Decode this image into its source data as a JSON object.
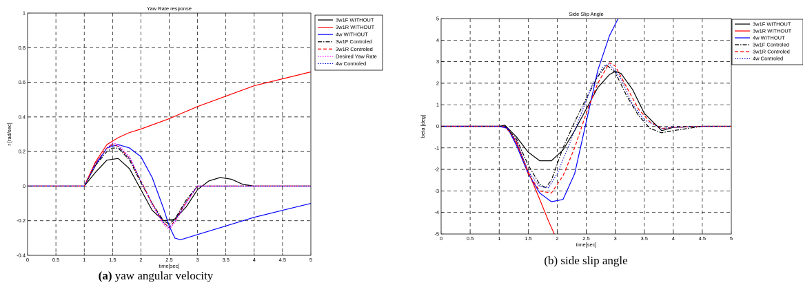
{
  "chart_data": [
    {
      "type": "line",
      "title": "Yaw Rate response",
      "xlabel": "time[sec]",
      "ylabel": "r [rad/sec]",
      "xlim": [
        0,
        5
      ],
      "ylim": [
        -0.4,
        1
      ],
      "xticks": [
        0,
        0.5,
        1,
        1.5,
        2,
        2.5,
        3,
        3.5,
        4,
        4.5,
        5
      ],
      "xtick_labels": [
        "0",
        "0.5",
        "1",
        "1.5",
        "2",
        "2.5",
        "3",
        "3.5",
        "4",
        "4.5",
        "5"
      ],
      "yticks": [
        -0.4,
        -0.2,
        0,
        0.2,
        0.4,
        0.6,
        0.8,
        1
      ],
      "ytick_labels": [
        "-0.4",
        "-0.2",
        "0",
        "0.2",
        "0.4",
        "0.6",
        "0.8",
        "1"
      ],
      "grid": true,
      "legend_position": "top-right",
      "caption_prefix": "(a)",
      "caption_text": " yaw angular velocity",
      "series": [
        {
          "name": "3w1F WITHOUT",
          "color": "#000000",
          "dash": "solid",
          "x": [
            0,
            1,
            1.2,
            1.4,
            1.6,
            1.8,
            2.0,
            2.2,
            2.4,
            2.6,
            2.8,
            3.0,
            3.2,
            3.4,
            3.6,
            3.8,
            4.0,
            4.5,
            5
          ],
          "y": [
            0,
            0,
            0.08,
            0.15,
            0.16,
            0.1,
            -0.02,
            -0.14,
            -0.2,
            -0.19,
            -0.12,
            -0.02,
            0.03,
            0.05,
            0.04,
            0.01,
            0,
            0,
            0
          ]
        },
        {
          "name": "3w1R WITHOUT",
          "color": "#ff0000",
          "dash": "solid",
          "x": [
            0,
            1,
            1.2,
            1.4,
            1.6,
            1.8,
            2.0,
            2.5,
            3.0,
            3.5,
            4.0,
            4.5,
            5
          ],
          "y": [
            0,
            0,
            0.14,
            0.24,
            0.28,
            0.31,
            0.33,
            0.39,
            0.46,
            0.52,
            0.58,
            0.62,
            0.66
          ]
        },
        {
          "name": "4w WITHOUT",
          "color": "#0000ff",
          "dash": "solid",
          "x": [
            0,
            1,
            1.2,
            1.4,
            1.6,
            1.8,
            2.0,
            2.2,
            2.4,
            2.5,
            2.6,
            2.7,
            3.0,
            3.5,
            4.0,
            4.5,
            5
          ],
          "y": [
            0,
            0,
            0.12,
            0.22,
            0.24,
            0.22,
            0.17,
            0.05,
            -0.13,
            -0.23,
            -0.3,
            -0.31,
            -0.28,
            -0.23,
            -0.18,
            -0.14,
            -0.1
          ]
        },
        {
          "name": "3w1F Controled",
          "color": "#000000",
          "dash": "dashdot",
          "x": [
            0,
            1,
            1.2,
            1.4,
            1.5,
            1.6,
            1.8,
            2.0,
            2.2,
            2.4,
            2.5,
            2.6,
            2.8,
            3.0,
            3.5,
            4,
            5
          ],
          "y": [
            0,
            0,
            0.12,
            0.2,
            0.22,
            0.22,
            0.15,
            0.02,
            -0.1,
            -0.2,
            -0.22,
            -0.19,
            -0.08,
            0,
            0,
            0,
            0
          ]
        },
        {
          "name": "3w1R Controled",
          "color": "#ff0000",
          "dash": "dashed",
          "x": [
            0,
            1,
            1.2,
            1.4,
            1.5,
            1.6,
            1.8,
            2.0,
            2.2,
            2.4,
            2.5,
            2.6,
            2.8,
            3.0,
            3.5,
            4,
            5
          ],
          "y": [
            0,
            0,
            0.13,
            0.22,
            0.24,
            0.23,
            0.16,
            0.03,
            -0.1,
            -0.21,
            -0.24,
            -0.2,
            -0.09,
            0,
            0,
            0,
            0
          ]
        },
        {
          "name": "Desired Yaw Rate",
          "color": "#ff00ff",
          "dash": "dotted",
          "x": [
            0,
            1,
            1.2,
            1.4,
            1.5,
            1.6,
            1.8,
            2.0,
            2.2,
            2.4,
            2.5,
            2.6,
            2.8,
            3.0,
            3.5,
            4,
            5
          ],
          "y": [
            0,
            0,
            0.13,
            0.22,
            0.25,
            0.24,
            0.17,
            0.03,
            -0.11,
            -0.22,
            -0.25,
            -0.21,
            -0.1,
            0,
            0,
            0,
            0
          ]
        },
        {
          "name": "4w Controled",
          "color": "#0000cc",
          "dash": "dotted",
          "x": [
            0,
            1,
            1.2,
            1.4,
            1.5,
            1.6,
            1.8,
            2.0,
            2.2,
            2.4,
            2.5,
            2.6,
            2.8,
            3.0,
            3.5,
            4,
            5
          ],
          "y": [
            0,
            0,
            0.13,
            0.22,
            0.24,
            0.23,
            0.16,
            0.03,
            -0.1,
            -0.21,
            -0.24,
            -0.2,
            -0.09,
            0,
            0,
            0,
            0
          ]
        }
      ]
    },
    {
      "type": "line",
      "title": "Side Slip Angle",
      "xlabel": "time[sec]",
      "ylabel": "beta [deg]",
      "xlim": [
        0,
        5
      ],
      "ylim": [
        -5,
        5
      ],
      "xticks": [
        0,
        0.5,
        1,
        1.5,
        2,
        2.5,
        3,
        3.5,
        4,
        4.5,
        5
      ],
      "xtick_labels": [
        "0",
        "0.5",
        "1",
        "1.5",
        "2",
        "2.5",
        "3",
        "3.5",
        "4",
        "4.5",
        "5"
      ],
      "yticks": [
        -5,
        -4,
        -3,
        -2,
        -1,
        0,
        1,
        2,
        3,
        4,
        5
      ],
      "ytick_labels": [
        "-5",
        "-4",
        "-3",
        "-2",
        "-1",
        "0",
        "1",
        "2",
        "3",
        "4",
        "5"
      ],
      "grid": true,
      "legend_position": "top-right",
      "caption_prefix": "",
      "caption_text": "(b) side slip angle",
      "series": [
        {
          "name": "3w1F WITHOUT",
          "color": "#000000",
          "dash": "solid",
          "x": [
            0,
            1,
            1.1,
            1.3,
            1.5,
            1.7,
            1.9,
            2.1,
            2.3,
            2.5,
            2.7,
            2.9,
            3.0,
            3.1,
            3.3,
            3.5,
            3.8,
            4.0,
            4.5,
            5
          ],
          "y": [
            0,
            0,
            0.05,
            -0.5,
            -1.2,
            -1.6,
            -1.6,
            -1.1,
            -0.2,
            0.8,
            1.8,
            2.4,
            2.55,
            2.45,
            1.7,
            0.6,
            -0.2,
            -0.05,
            0,
            0
          ]
        },
        {
          "name": "3w1R WITHOUT",
          "color": "#ff0000",
          "dash": "solid",
          "x": [
            0,
            1,
            1.15,
            1.3,
            1.5,
            1.7,
            1.85,
            1.95
          ],
          "y": [
            0,
            0,
            -0.1,
            -0.8,
            -2.1,
            -3.4,
            -4.4,
            -5
          ]
        },
        {
          "name": "4w WITHOUT",
          "color": "#0000ff",
          "dash": "solid",
          "x": [
            0,
            1,
            1.15,
            1.3,
            1.5,
            1.7,
            1.9,
            2.1,
            2.3,
            2.5,
            2.7,
            2.9,
            3.05
          ],
          "y": [
            0,
            0,
            -0.1,
            -0.9,
            -2.2,
            -3.1,
            -3.5,
            -3.4,
            -2.2,
            0.2,
            2.6,
            4.2,
            5
          ]
        },
        {
          "name": "3w1F Controled",
          "color": "#000000",
          "dash": "dashdot",
          "x": [
            0,
            1,
            1.1,
            1.3,
            1.5,
            1.7,
            1.8,
            1.9,
            2.1,
            2.3,
            2.5,
            2.7,
            2.85,
            3.0,
            3.2,
            3.4,
            3.6,
            3.8,
            4.0,
            4.5,
            5
          ],
          "y": [
            0,
            0,
            0,
            -0.6,
            -1.8,
            -2.7,
            -2.85,
            -2.5,
            -1.0,
            0.2,
            1.3,
            2.3,
            2.85,
            2.5,
            1.4,
            0.5,
            -0.1,
            -0.3,
            -0.2,
            0,
            0
          ]
        },
        {
          "name": "3w1R Controled",
          "color": "#ff0000",
          "dash": "dashed",
          "x": [
            0,
            1,
            1.1,
            1.3,
            1.5,
            1.7,
            1.9,
            2.1,
            2.3,
            2.5,
            2.7,
            2.9,
            3.0,
            3.2,
            3.4,
            3.6,
            3.8,
            4.0,
            4.5,
            5
          ],
          "y": [
            0,
            0,
            0,
            -0.7,
            -2.2,
            -3.0,
            -3.1,
            -2.3,
            -1.0,
            0.6,
            2.0,
            2.95,
            2.8,
            1.8,
            0.8,
            0.2,
            -0.1,
            -0.05,
            0,
            0
          ]
        },
        {
          "name": "4w Controled",
          "color": "#0000cc",
          "dash": "dotted",
          "x": [
            0,
            1,
            1.1,
            1.3,
            1.5,
            1.7,
            1.85,
            2.0,
            2.2,
            2.4,
            2.6,
            2.8,
            2.9,
            3.1,
            3.3,
            3.5,
            3.8,
            4.0,
            4.5,
            5
          ],
          "y": [
            0,
            0,
            0,
            -0.7,
            -2.1,
            -2.8,
            -2.85,
            -2.2,
            -0.9,
            0.5,
            1.9,
            2.8,
            2.9,
            2.2,
            1.0,
            0.3,
            -0.1,
            -0.05,
            0,
            0
          ]
        }
      ]
    }
  ]
}
